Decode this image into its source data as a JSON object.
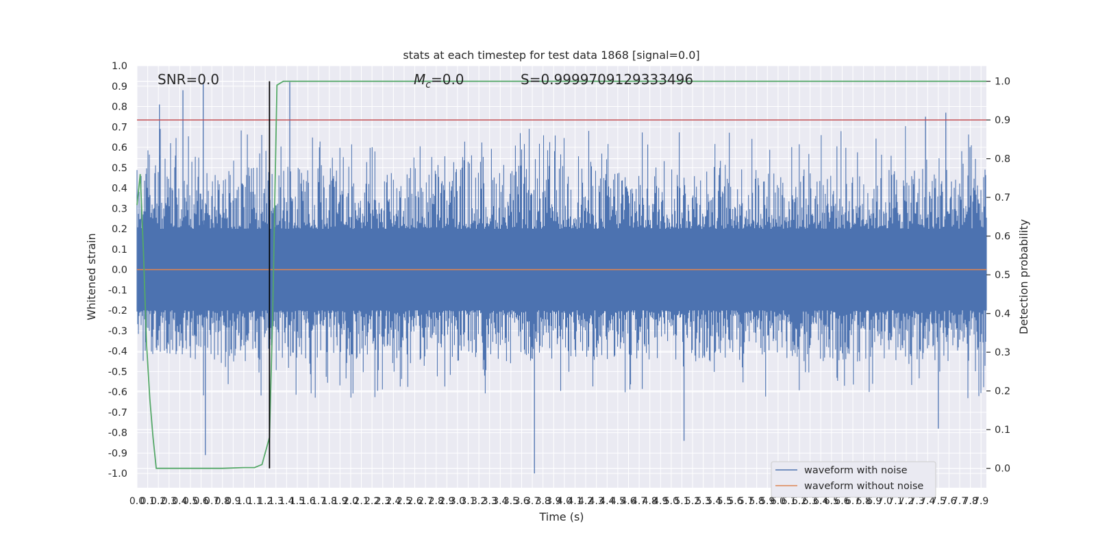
{
  "chart_data": {
    "type": "line",
    "title": "stats at each timestep for test data 1868 [signal=0.0]",
    "xlabel": "Time (s)",
    "ylabel": "Whitened strain",
    "y2label": "Detection probability",
    "xlim": [
      0.0,
      7.95
    ],
    "ylim": [
      -1.07,
      1.0
    ],
    "y2lim": [
      -0.05,
      1.04
    ],
    "x_ticks": [
      0.0,
      0.1,
      0.2,
      0.3,
      0.4,
      0.5,
      0.6,
      0.7,
      0.8,
      0.9,
      1.0,
      1.1,
      1.2,
      1.3,
      1.4,
      1.5,
      1.6,
      1.7,
      1.8,
      1.9,
      2.0,
      2.1,
      2.2,
      2.3,
      2.4,
      2.5,
      2.6,
      2.7,
      2.8,
      2.9,
      3.0,
      3.1,
      3.2,
      3.3,
      3.4,
      3.5,
      3.6,
      3.7,
      3.8,
      3.9,
      4.0,
      4.1,
      4.2,
      4.3,
      4.4,
      4.5,
      4.6,
      4.7,
      4.8,
      4.9,
      5.0,
      5.1,
      5.2,
      5.3,
      5.4,
      5.5,
      5.6,
      5.7,
      5.8,
      5.9,
      6.0,
      6.1,
      6.2,
      6.3,
      6.4,
      6.5,
      6.6,
      6.7,
      6.8,
      6.9,
      7.0,
      7.1,
      7.2,
      7.3,
      7.4,
      7.5,
      7.6,
      7.7,
      7.8,
      7.9
    ],
    "y_ticks": [
      1.0,
      0.9,
      0.8,
      0.7,
      0.6,
      0.5,
      0.4,
      0.3,
      0.2,
      0.1,
      0.0,
      -0.1,
      -0.2,
      -0.3,
      -0.4,
      -0.5,
      -0.6,
      -0.7,
      -0.8,
      -0.9,
      -1.0
    ],
    "y2_ticks": [
      0.0,
      0.1,
      0.2,
      0.3,
      0.4,
      0.5,
      0.6,
      0.7,
      0.8,
      0.9,
      1.0
    ],
    "threshold_y2": 0.9,
    "marker_x": 1.24,
    "annotations": {
      "snr": "SNR=0.0",
      "mc_symbol": "M",
      "mc_sub": "c",
      "mc_value": "=0.0",
      "s": "S=0.9999709129333496"
    },
    "series": [
      {
        "name": "waveform with noise",
        "axis": "left",
        "color": "#4c72b0",
        "envelope_upper": 0.55,
        "envelope_lower": -0.48,
        "notable_peaks": [
          {
            "x": 0.21,
            "y": 0.81
          },
          {
            "x": 0.43,
            "y": 0.88
          },
          {
            "x": 0.62,
            "y": 0.92
          },
          {
            "x": 1.43,
            "y": 0.92
          },
          {
            "x": 7.38,
            "y": 0.75
          },
          {
            "x": 7.57,
            "y": 0.77
          },
          {
            "x": 0.64,
            "y": -0.91
          },
          {
            "x": 3.72,
            "y": -1.0
          },
          {
            "x": 5.12,
            "y": -0.84
          },
          {
            "x": 7.5,
            "y": -0.78
          }
        ]
      },
      {
        "name": "waveform without noise",
        "axis": "left",
        "color": "#dd8452",
        "x": [
          0.0,
          7.95
        ],
        "y": [
          0.0,
          0.0
        ]
      },
      {
        "axis": "right",
        "color": "#55a868",
        "x": [
          0.0,
          0.03,
          0.06,
          0.09,
          0.12,
          0.15,
          0.18,
          0.8,
          1.0,
          1.1,
          1.17,
          1.21,
          1.24,
          1.27,
          1.31,
          1.37,
          1.43,
          7.95
        ],
        "y": [
          0.68,
          0.76,
          0.56,
          0.32,
          0.18,
          0.08,
          0.0,
          0.0,
          0.002,
          0.002,
          0.01,
          0.05,
          0.08,
          0.4,
          0.99,
          1.0,
          1.0,
          1.0
        ]
      }
    ],
    "legend": {
      "position": "lower-right",
      "entries": [
        "waveform with noise",
        "waveform without noise"
      ]
    },
    "colors": {
      "background": "#eaeaf2",
      "grid": "#ffffff",
      "threshold": "#c44e52",
      "marker": "#000000"
    }
  }
}
